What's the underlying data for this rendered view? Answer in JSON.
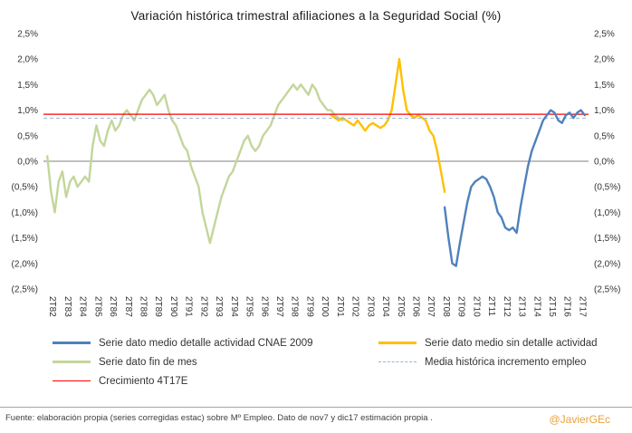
{
  "title": "Variación histórica trimestral afiliaciones a la Seguridad Social (%)",
  "footer": {
    "source": "Fuente: elaboración propia (series corregidas estac) sobre Mº Empleo. Dato de nov7 y dic17 estimación propia .",
    "credit": "@JavierGEc"
  },
  "chart_data": {
    "type": "line",
    "title": "Variación histórica trimestral afiliaciones a la Seguridad Social (%)",
    "ylim": [
      -2.5,
      2.5
    ],
    "xlim": [
      1982,
      2018
    ],
    "grid": false,
    "legend_position": "bottom",
    "y_ticks": [
      "2,5%",
      "2,0%",
      "1,5%",
      "1,0%",
      "0,5%",
      "0,0%",
      "(0,5%)",
      "(1,0%)",
      "(1,5%)",
      "(2,0%)",
      "(2,5%)"
    ],
    "y_tick_values": [
      2.5,
      2.0,
      1.5,
      1.0,
      0.5,
      0.0,
      -0.5,
      -1.0,
      -1.5,
      -2.0,
      -2.5
    ],
    "x_tick_start": 1982.25,
    "x_tick_step": 1,
    "x_tick_labels": [
      "2T82",
      "2T83",
      "2T84",
      "2T85",
      "2T86",
      "2T87",
      "2T88",
      "2T89",
      "2T90",
      "2T91",
      "2T92",
      "2T93",
      "2T94",
      "2T95",
      "2T96",
      "2T97",
      "2T98",
      "2T99",
      "2T00",
      "2T01",
      "2T02",
      "2T03",
      "2T04",
      "2T05",
      "2T06",
      "2T07",
      "2T08",
      "2T09",
      "2T10",
      "2T11",
      "2T12",
      "2T13",
      "2T14",
      "2T15",
      "2T16",
      "2T17"
    ],
    "series": [
      {
        "name": "Serie dato fin de mes",
        "color": "#C3D69B",
        "x_start": 1982.25,
        "x_step": 0.25,
        "values": [
          0.1,
          -0.6,
          -1.0,
          -0.4,
          -0.2,
          -0.7,
          -0.4,
          -0.3,
          -0.5,
          -0.4,
          -0.3,
          -0.4,
          0.3,
          0.7,
          0.4,
          0.3,
          0.6,
          0.8,
          0.6,
          0.7,
          0.9,
          1.0,
          0.9,
          0.8,
          1.0,
          1.2,
          1.3,
          1.4,
          1.3,
          1.1,
          1.2,
          1.3,
          1.0,
          0.8,
          0.7,
          0.5,
          0.3,
          0.2,
          -0.1,
          -0.3,
          -0.5,
          -1.0,
          -1.3,
          -1.6,
          -1.3,
          -1.0,
          -0.7,
          -0.5,
          -0.3,
          -0.2,
          0.0,
          0.2,
          0.4,
          0.5,
          0.3,
          0.2,
          0.3,
          0.5,
          0.6,
          0.7,
          0.9,
          1.1,
          1.2,
          1.3,
          1.4,
          1.5,
          1.4,
          1.5,
          1.4,
          1.3,
          1.5,
          1.4,
          1.2,
          1.1,
          1.0,
          1.0,
          0.9,
          0.85,
          0.8
        ]
      },
      {
        "name": "Serie dato medio sin detalle actividad",
        "color": "#FFC000",
        "x_start": 2001.0,
        "x_step": 0.25,
        "values": [
          0.9,
          0.85,
          0.8,
          0.85,
          0.8,
          0.75,
          0.7,
          0.8,
          0.7,
          0.6,
          0.7,
          0.75,
          0.7,
          0.65,
          0.7,
          0.8,
          1.0,
          1.5,
          2.0,
          1.4,
          1.0,
          0.9,
          0.85,
          0.9,
          0.85,
          0.8,
          0.6,
          0.5,
          0.2,
          -0.2,
          -0.6
        ]
      },
      {
        "name": "Media histórica incremento empleo",
        "color": "#95B3D7",
        "style": "dashed",
        "constant": 0.84
      },
      {
        "name": "Crecimiento 4T17E",
        "color": "#FF0000",
        "constant": 0.92
      },
      {
        "name": "Serie dato medio detalle actividad CNAE 2009",
        "color": "#4F81BD",
        "x_start": 2008.5,
        "x_step": 0.25,
        "values": [
          -0.9,
          -1.5,
          -2.0,
          -2.05,
          -1.6,
          -1.2,
          -0.8,
          -0.5,
          -0.4,
          -0.35,
          -0.3,
          -0.35,
          -0.5,
          -0.7,
          -1.0,
          -1.1,
          -1.3,
          -1.35,
          -1.3,
          -1.4,
          -0.9,
          -0.5,
          -0.1,
          0.2,
          0.4,
          0.6,
          0.8,
          0.9,
          1.0,
          0.95,
          0.8,
          0.75,
          0.9,
          0.95,
          0.85,
          0.95,
          1.0,
          0.9
        ]
      }
    ]
  }
}
